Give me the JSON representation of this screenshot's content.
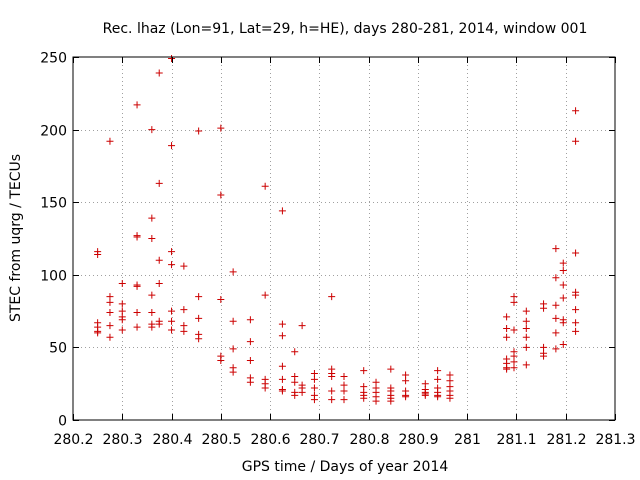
{
  "chart_data": {
    "type": "scatter",
    "title": "Rec. lhaz (Lon=91, Lat=29, h=HE), days 280-281, 2014, window 001",
    "xlabel": "GPS time / Days of year 2014",
    "ylabel": "STEC from uqrg / TECUs",
    "xlim": [
      280.2,
      281.3
    ],
    "ylim": [
      0,
      250
    ],
    "xticks": [
      280.2,
      280.3,
      280.4,
      280.5,
      280.6,
      280.7,
      280.8,
      280.9,
      281,
      281.1,
      281.2,
      281.3
    ],
    "xtick_labels": [
      "280.2",
      "280.3",
      "280.4",
      "280.5",
      "280.6",
      "280.7",
      "280.8",
      "280.9",
      "281",
      "281.1",
      "281.2",
      "281.3"
    ],
    "yticks": [
      0,
      50,
      100,
      150,
      200,
      250
    ],
    "ytick_labels": [
      "0",
      "50",
      "100",
      "150",
      "200",
      "250"
    ],
    "grid": true,
    "marker": "plus",
    "color": "#cc0000",
    "points": [
      [
        280.25,
        116
      ],
      [
        280.25,
        114
      ],
      [
        280.25,
        67
      ],
      [
        280.25,
        64
      ],
      [
        280.25,
        61
      ],
      [
        280.25,
        60
      ],
      [
        280.275,
        192
      ],
      [
        280.275,
        85
      ],
      [
        280.275,
        81
      ],
      [
        280.275,
        74
      ],
      [
        280.275,
        65
      ],
      [
        280.275,
        57
      ],
      [
        280.3,
        94
      ],
      [
        280.3,
        80
      ],
      [
        280.3,
        75
      ],
      [
        280.3,
        71
      ],
      [
        280.3,
        69
      ],
      [
        280.3,
        62
      ],
      [
        280.33,
        217
      ],
      [
        280.33,
        127
      ],
      [
        280.33,
        126
      ],
      [
        280.33,
        93
      ],
      [
        280.33,
        92
      ],
      [
        280.33,
        74
      ],
      [
        280.33,
        64
      ],
      [
        280.36,
        200
      ],
      [
        280.36,
        139
      ],
      [
        280.36,
        125
      ],
      [
        280.36,
        86
      ],
      [
        280.36,
        74
      ],
      [
        280.36,
        66
      ],
      [
        280.36,
        64
      ],
      [
        280.375,
        239
      ],
      [
        280.375,
        163
      ],
      [
        280.375,
        110
      ],
      [
        280.375,
        94
      ],
      [
        280.375,
        68
      ],
      [
        280.375,
        66
      ],
      [
        280.4,
        249
      ],
      [
        280.4,
        189
      ],
      [
        280.4,
        116
      ],
      [
        280.4,
        107
      ],
      [
        280.4,
        75
      ],
      [
        280.4,
        68
      ],
      [
        280.4,
        62
      ],
      [
        280.425,
        106
      ],
      [
        280.425,
        76
      ],
      [
        280.425,
        65
      ],
      [
        280.425,
        61
      ],
      [
        280.455,
        199
      ],
      [
        280.455,
        85
      ],
      [
        280.455,
        70
      ],
      [
        280.455,
        59
      ],
      [
        280.455,
        56
      ],
      [
        280.5,
        201
      ],
      [
        280.5,
        155
      ],
      [
        280.5,
        83
      ],
      [
        280.5,
        44
      ],
      [
        280.5,
        41
      ],
      [
        280.525,
        102
      ],
      [
        280.525,
        68
      ],
      [
        280.525,
        49
      ],
      [
        280.525,
        36
      ],
      [
        280.525,
        33
      ],
      [
        280.56,
        69
      ],
      [
        280.56,
        54
      ],
      [
        280.56,
        41
      ],
      [
        280.56,
        29
      ],
      [
        280.56,
        26
      ],
      [
        280.59,
        161
      ],
      [
        280.59,
        86
      ],
      [
        280.59,
        28
      ],
      [
        280.59,
        25
      ],
      [
        280.59,
        22
      ],
      [
        280.625,
        144
      ],
      [
        280.625,
        66
      ],
      [
        280.625,
        58
      ],
      [
        280.625,
        37
      ],
      [
        280.625,
        28
      ],
      [
        280.625,
        21
      ],
      [
        280.625,
        20
      ],
      [
        280.65,
        47
      ],
      [
        280.65,
        30
      ],
      [
        280.65,
        26
      ],
      [
        280.65,
        19
      ],
      [
        280.65,
        17
      ],
      [
        280.665,
        65
      ],
      [
        280.665,
        24
      ],
      [
        280.665,
        22
      ],
      [
        280.665,
        19
      ],
      [
        280.69,
        32
      ],
      [
        280.69,
        28
      ],
      [
        280.69,
        22
      ],
      [
        280.69,
        17
      ],
      [
        280.69,
        14
      ],
      [
        280.725,
        85
      ],
      [
        280.725,
        35
      ],
      [
        280.725,
        32
      ],
      [
        280.725,
        30
      ],
      [
        280.725,
        20
      ],
      [
        280.725,
        14
      ],
      [
        280.75,
        30
      ],
      [
        280.75,
        24
      ],
      [
        280.75,
        20
      ],
      [
        280.75,
        14
      ],
      [
        280.79,
        34
      ],
      [
        280.79,
        23
      ],
      [
        280.79,
        19
      ],
      [
        280.79,
        17
      ],
      [
        280.79,
        15
      ],
      [
        280.815,
        26
      ],
      [
        280.815,
        22
      ],
      [
        280.815,
        19
      ],
      [
        280.815,
        16
      ],
      [
        280.815,
        13
      ],
      [
        280.845,
        35
      ],
      [
        280.845,
        22
      ],
      [
        280.845,
        20
      ],
      [
        280.845,
        17
      ],
      [
        280.845,
        15
      ],
      [
        280.845,
        13
      ],
      [
        280.875,
        31
      ],
      [
        280.875,
        27
      ],
      [
        280.875,
        20
      ],
      [
        280.875,
        17
      ],
      [
        280.875,
        16
      ],
      [
        280.915,
        25
      ],
      [
        280.915,
        21
      ],
      [
        280.915,
        19
      ],
      [
        280.915,
        18
      ],
      [
        280.915,
        17
      ],
      [
        280.94,
        34
      ],
      [
        280.94,
        28
      ],
      [
        280.94,
        22
      ],
      [
        280.94,
        19
      ],
      [
        280.94,
        17
      ],
      [
        280.94,
        16
      ],
      [
        280.965,
        31
      ],
      [
        280.965,
        27
      ],
      [
        280.965,
        23
      ],
      [
        280.965,
        20
      ],
      [
        280.965,
        17
      ],
      [
        280.965,
        15
      ],
      [
        281.08,
        71
      ],
      [
        281.08,
        63
      ],
      [
        281.08,
        57
      ],
      [
        281.08,
        42
      ],
      [
        281.08,
        39
      ],
      [
        281.08,
        36
      ],
      [
        281.08,
        35
      ],
      [
        281.095,
        85
      ],
      [
        281.095,
        81
      ],
      [
        281.095,
        62
      ],
      [
        281.095,
        47
      ],
      [
        281.095,
        44
      ],
      [
        281.095,
        40
      ],
      [
        281.095,
        36
      ],
      [
        281.12,
        75
      ],
      [
        281.12,
        68
      ],
      [
        281.12,
        63
      ],
      [
        281.12,
        57
      ],
      [
        281.12,
        50
      ],
      [
        281.12,
        38
      ],
      [
        281.155,
        80
      ],
      [
        281.155,
        77
      ],
      [
        281.155,
        50
      ],
      [
        281.155,
        46
      ],
      [
        281.155,
        44
      ],
      [
        281.18,
        118
      ],
      [
        281.18,
        98
      ],
      [
        281.18,
        79
      ],
      [
        281.18,
        70
      ],
      [
        281.18,
        60
      ],
      [
        281.18,
        49
      ],
      [
        281.195,
        108
      ],
      [
        281.195,
        103
      ],
      [
        281.195,
        93
      ],
      [
        281.195,
        84
      ],
      [
        281.195,
        69
      ],
      [
        281.195,
        67
      ],
      [
        281.195,
        52
      ],
      [
        281.22,
        213
      ],
      [
        281.22,
        192
      ],
      [
        281.22,
        115
      ],
      [
        281.22,
        88
      ],
      [
        281.22,
        86
      ],
      [
        281.22,
        76
      ],
      [
        281.22,
        67
      ],
      [
        281.22,
        61
      ]
    ]
  }
}
